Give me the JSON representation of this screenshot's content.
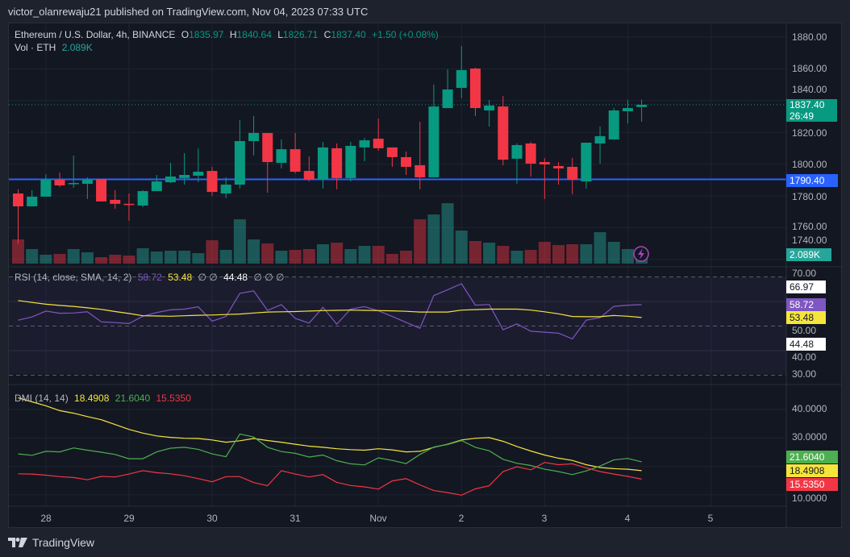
{
  "header": {
    "publish_line": "victor_olanrewaju21 published on TradingView.com, Nov 04, 2023 07:33 UTC"
  },
  "legend": {
    "symbol": "Ethereum / U.S. Dollar, 4h, BINANCE",
    "o_label": "O",
    "open": "1835.97",
    "h_label": "H",
    "high": "1840.64",
    "l_label": "L",
    "low": "1826.71",
    "c_label": "C",
    "close": "1837.40",
    "change": "+1.50 (+0.08%)",
    "vol_label": "Vol · ETH",
    "vol_value": "2.089K"
  },
  "rsi_legend": {
    "name": "RSI (14, close, SMA, 14, 2)",
    "rsi": "58.72",
    "sma": "53.48",
    "na1": "∅ ∅",
    "value3": "44.48",
    "na2": "∅ ∅ ∅"
  },
  "dmi_legend": {
    "name": "DMI (14, 14)",
    "adx": "18.4908",
    "plus_di": "21.6040",
    "minus_di": "15.5350"
  },
  "price_axis": {
    "labels": [
      "1880.00",
      "1860.00",
      "1840.00",
      "1820.00",
      "1800.00",
      "1780.00",
      "1760.00",
      "1740.00"
    ],
    "last_price": "1837.40",
    "countdown": "26:49",
    "line_level": "1790.40",
    "volume_tag": "2.089K"
  },
  "rsi_axis": {
    "labels": [
      "70.00",
      "50.00",
      "40.00",
      "30.00"
    ],
    "tags": [
      "66.97",
      "58.72",
      "53.48",
      "44.48"
    ]
  },
  "dmi_axis": {
    "labels": [
      "40.0000",
      "30.0000",
      "10.0000"
    ],
    "tags": [
      "21.6040",
      "18.4908",
      "15.5350"
    ]
  },
  "time_axis": {
    "labels": [
      "28",
      "29",
      "30",
      "31",
      "Nov",
      "2",
      "3",
      "4",
      "5"
    ]
  },
  "footer": {
    "brand": "TradingView"
  },
  "colors": {
    "up": "#089981",
    "down": "#f23645",
    "line": "#2962ff",
    "rsi": "#7e57c2",
    "sma": "#f5e53b",
    "plus_di": "#4caf50",
    "minus_di": "#f23645",
    "adx": "#f5e53b"
  },
  "chart_data": {
    "type": "candlestick",
    "title": "Ethereum / U.S. Dollar, 4h, BINANCE",
    "ylim": [
      1740,
      1885
    ],
    "horizontal_line": 1790.4,
    "candles": [
      [
        1781.5,
        1784.1,
        1750.0,
        1773.4
      ],
      [
        1773.4,
        1783.6,
        1773.4,
        1779.5
      ],
      [
        1779.5,
        1793.7,
        1779.5,
        1790.2
      ],
      [
        1790.2,
        1794.7,
        1785.6,
        1786.6
      ],
      [
        1787.6,
        1805.4,
        1785.1,
        1788.1
      ],
      [
        1787.6,
        1791.7,
        1778.0,
        1790.2
      ],
      [
        1790.7,
        1790.7,
        1776.5,
        1776.5
      ],
      [
        1777.5,
        1783.6,
        1771.9,
        1775.0
      ],
      [
        1775.0,
        1781.5,
        1764.3,
        1774.4
      ],
      [
        1773.9,
        1783.6,
        1772.9,
        1783.0
      ],
      [
        1783.0,
        1793.2,
        1783.0,
        1789.1
      ],
      [
        1788.6,
        1800.8,
        1788.1,
        1792.2
      ],
      [
        1791.2,
        1806.9,
        1787.1,
        1793.2
      ],
      [
        1792.7,
        1809.9,
        1788.6,
        1795.2
      ],
      [
        1795.7,
        1798.3,
        1780.0,
        1782.5
      ],
      [
        1781.5,
        1791.7,
        1778.5,
        1787.1
      ],
      [
        1787.1,
        1827.7,
        1784.6,
        1814.5
      ],
      [
        1814.5,
        1830.3,
        1805.4,
        1819.6
      ],
      [
        1819.6,
        1819.6,
        1782.0,
        1801.3
      ],
      [
        1800.8,
        1815.5,
        1797.3,
        1809.4
      ],
      [
        1809.4,
        1819.6,
        1794.2,
        1795.2
      ],
      [
        1795.7,
        1804.9,
        1789.1,
        1790.2
      ],
      [
        1790.2,
        1814.0,
        1784.6,
        1810.5
      ],
      [
        1810.0,
        1813.0,
        1784.1,
        1791.2
      ],
      [
        1791.2,
        1814.0,
        1789.1,
        1811.5
      ],
      [
        1810.5,
        1816.5,
        1801.8,
        1815.0
      ],
      [
        1816.0,
        1828.7,
        1808.4,
        1810.0
      ],
      [
        1810.5,
        1810.5,
        1798.3,
        1804.4
      ],
      [
        1804.4,
        1807.9,
        1793.2,
        1798.3
      ],
      [
        1799.3,
        1826.7,
        1784.1,
        1791.7
      ],
      [
        1791.7,
        1850.1,
        1791.7,
        1836.3
      ],
      [
        1835.3,
        1859.7,
        1835.3,
        1847.0
      ],
      [
        1848.0,
        1874.4,
        1841.4,
        1859.2
      ],
      [
        1860.2,
        1860.7,
        1830.3,
        1835.3
      ],
      [
        1833.8,
        1840.4,
        1823.7,
        1836.9
      ],
      [
        1836.3,
        1842.9,
        1799.3,
        1802.8
      ],
      [
        1803.4,
        1813.0,
        1787.6,
        1812.0
      ],
      [
        1813.0,
        1814.0,
        1792.2,
        1800.3
      ],
      [
        1801.3,
        1803.8,
        1778.0,
        1799.8
      ],
      [
        1798.8,
        1801.3,
        1787.1,
        1797.3
      ],
      [
        1798.3,
        1803.9,
        1781.0,
        1790.2
      ],
      [
        1789.1,
        1813.5,
        1784.6,
        1813.5
      ],
      [
        1813.0,
        1823.7,
        1800.3,
        1817.6
      ],
      [
        1815.5,
        1835.3,
        1815.5,
        1833.8
      ],
      [
        1833.3,
        1840.4,
        1825.7,
        1835.3
      ],
      [
        1835.97,
        1840.64,
        1826.71,
        1837.4
      ]
    ],
    "volume_k": [
      9.0,
      5.4,
      3.3,
      3.6,
      5.4,
      4.2,
      2.4,
      3.3,
      3.0,
      5.7,
      4.5,
      4.8,
      4.8,
      3.9,
      8.7,
      5.1,
      16.5,
      9.0,
      7.5,
      4.8,
      5.1,
      5.4,
      7.2,
      7.8,
      5.4,
      6.6,
      6.6,
      3.6,
      4.8,
      16.5,
      18.3,
      22.5,
      12.3,
      8.4,
      7.8,
      6.6,
      4.8,
      5.1,
      8.1,
      6.9,
      7.2,
      7.2,
      11.7,
      8.1,
      5.4,
      2.089
    ],
    "rsi": [
      52.4,
      53.7,
      56.1,
      55.2,
      55.3,
      55.8,
      51.7,
      51.4,
      51.0,
      54.0,
      55.5,
      56.6,
      56.9,
      57.8,
      52.0,
      53.9,
      63.3,
      64.3,
      56.4,
      58.7,
      53.1,
      51.2,
      57.6,
      50.8,
      56.9,
      57.9,
      56.2,
      53.9,
      51.5,
      49.1,
      62.4,
      64.8,
      67.2,
      58.5,
      58.8,
      48.5,
      50.9,
      47.9,
      47.5,
      47.1,
      44.8,
      52.4,
      53.4,
      58.0,
      58.5,
      58.72
    ],
    "rsi_sma": [
      60.4,
      59.6,
      58.9,
      58.4,
      58.0,
      57.4,
      56.8,
      55.9,
      55.1,
      54.2,
      54.1,
      54.0,
      54.2,
      54.4,
      54.5,
      54.7,
      54.9,
      55.3,
      55.7,
      55.8,
      55.9,
      56.1,
      56.3,
      56.4,
      56.5,
      56.4,
      56.3,
      56.2,
      56.0,
      55.7,
      55.7,
      55.7,
      56.5,
      56.7,
      56.9,
      56.9,
      56.9,
      56.5,
      55.8,
      55.0,
      53.9,
      53.8,
      53.8,
      54.3,
      54.0,
      53.48
    ],
    "rsi_ylim": [
      25,
      75
    ],
    "plus_di": [
      24.4,
      23.9,
      25.3,
      25.1,
      26.5,
      25.7,
      25.0,
      24.2,
      22.7,
      22.7,
      25.1,
      26.4,
      26.7,
      26.0,
      24.4,
      23.4,
      31.4,
      30.3,
      26.7,
      25.2,
      24.6,
      23.3,
      24.0,
      22.0,
      20.9,
      20.5,
      23.0,
      22.1,
      21.0,
      24.2,
      26.8,
      27.7,
      29.1,
      26.7,
      25.5,
      22.5,
      21.1,
      20.3,
      19.0,
      18.2,
      17.1,
      18.4,
      20.1,
      22.3,
      22.8,
      21.604
    ],
    "minus_di": [
      17.4,
      17.3,
      16.9,
      16.4,
      16.1,
      15.3,
      16.5,
      16.3,
      17.3,
      18.5,
      17.8,
      17.4,
      16.7,
      15.7,
      14.6,
      16.4,
      16.4,
      14.3,
      13.2,
      18.5,
      17.3,
      16.3,
      17.1,
      14.4,
      13.3,
      12.8,
      12.0,
      14.9,
      15.7,
      13.5,
      11.5,
      10.8,
      9.9,
      12.1,
      13.2,
      18.2,
      19.9,
      18.8,
      21.4,
      20.6,
      20.9,
      19.5,
      18.2,
      17.3,
      16.5,
      15.535
    ],
    "adx": [
      44.1,
      42.7,
      41.3,
      39.6,
      38.7,
      37.5,
      36.4,
      34.7,
      33.0,
      31.7,
      30.7,
      30.2,
      29.9,
      29.8,
      29.3,
      28.5,
      29.0,
      29.8,
      29.1,
      28.5,
      27.8,
      27.1,
      26.7,
      26.2,
      25.9,
      25.7,
      26.2,
      25.8,
      25.1,
      25.3,
      26.7,
      27.8,
      29.3,
      29.9,
      30.1,
      28.8,
      27.0,
      25.4,
      24.0,
      22.9,
      22.1,
      20.6,
      19.6,
      19.2,
      19.0,
      18.4908
    ]
  }
}
